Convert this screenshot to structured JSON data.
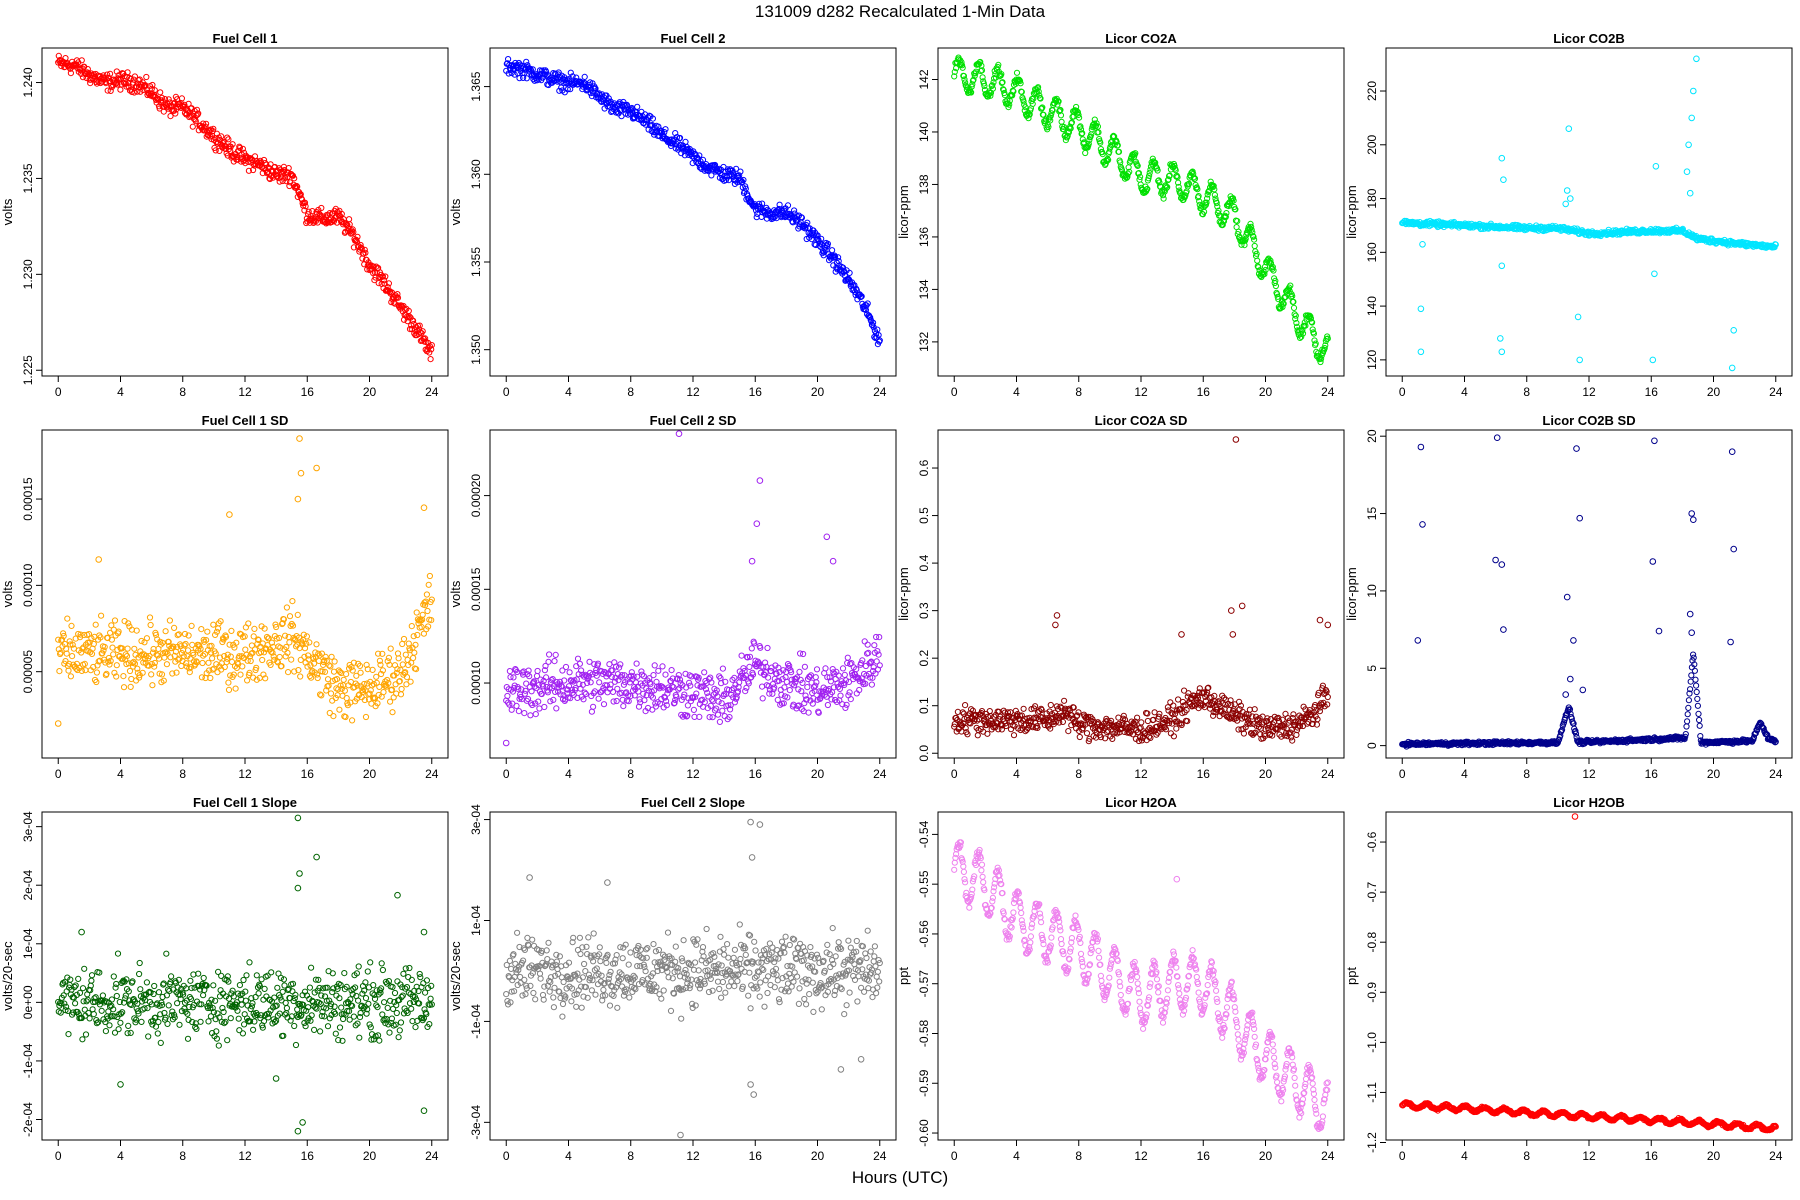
{
  "page": {
    "title": "131009    d282    Recalculated 1-Min Data",
    "xlabel": "Hours (UTC)"
  },
  "chart_data": [
    {
      "type": "scatter",
      "title": "Fuel Cell 1",
      "ylabel": "volts",
      "color": "#ff0000",
      "xlim": [
        0,
        24
      ],
      "xticks": [
        0,
        4,
        8,
        12,
        16,
        20,
        24
      ],
      "ylim": [
        1.2247,
        1.2418
      ],
      "yticks": [
        1.225,
        1.23,
        1.235,
        1.24
      ],
      "yticklabels": [
        "1.225",
        "1.230",
        "1.235",
        "1.240"
      ],
      "points": [
        [
          0,
          1.241
        ],
        [
          1,
          1.2409
        ],
        [
          2,
          1.2404
        ],
        [
          3,
          1.24
        ],
        [
          4,
          1.2401
        ],
        [
          5,
          1.24
        ],
        [
          6,
          1.2395
        ],
        [
          7,
          1.2387
        ],
        [
          8,
          1.2387
        ],
        [
          9,
          1.238
        ],
        [
          10,
          1.2372
        ],
        [
          11,
          1.2365
        ],
        [
          12,
          1.236
        ],
        [
          13,
          1.2357
        ],
        [
          14,
          1.2352
        ],
        [
          15,
          1.2352
        ],
        [
          16,
          1.2331
        ],
        [
          17,
          1.2329
        ],
        [
          18,
          1.233
        ],
        [
          19,
          1.232
        ],
        [
          20,
          1.2305
        ],
        [
          21,
          1.2295
        ],
        [
          22,
          1.2283
        ],
        [
          23,
          1.2272
        ],
        [
          24,
          1.2258
        ]
      ],
      "noise": 0.0004
    },
    {
      "type": "scatter",
      "title": "Fuel Cell 2",
      "ylabel": "volts",
      "color": "#0000ff",
      "xlim": [
        0,
        24
      ],
      "xticks": [
        0,
        4,
        8,
        12,
        16,
        20,
        24
      ],
      "ylim": [
        1.3485,
        1.3672
      ],
      "yticks": [
        1.35,
        1.355,
        1.36,
        1.365
      ],
      "yticklabels": [
        "1.350",
        "1.355",
        "1.360",
        "1.365"
      ],
      "points": [
        [
          0,
          1.3662
        ],
        [
          1,
          1.366
        ],
        [
          2,
          1.3657
        ],
        [
          3,
          1.3654
        ],
        [
          4,
          1.3652
        ],
        [
          5,
          1.3652
        ],
        [
          6,
          1.3644
        ],
        [
          7,
          1.3637
        ],
        [
          8,
          1.3636
        ],
        [
          9,
          1.363
        ],
        [
          10,
          1.3622
        ],
        [
          11,
          1.3617
        ],
        [
          12,
          1.361
        ],
        [
          13,
          1.3604
        ],
        [
          14,
          1.36
        ],
        [
          15,
          1.3598
        ],
        [
          16,
          1.358
        ],
        [
          17,
          1.3578
        ],
        [
          18,
          1.3578
        ],
        [
          19,
          1.3572
        ],
        [
          20,
          1.3562
        ],
        [
          21,
          1.3552
        ],
        [
          22,
          1.354
        ],
        [
          23,
          1.3525
        ],
        [
          24,
          1.3505
        ]
      ],
      "noise": 0.0004
    },
    {
      "type": "scatter",
      "title": "Licor CO2A",
      "ylabel": "licor-ppm",
      "color": "#00e000",
      "xlim": [
        0,
        24
      ],
      "xticks": [
        0,
        4,
        8,
        12,
        16,
        20,
        24
      ],
      "ylim": [
        130.7,
        143.2
      ],
      "yticks": [
        132,
        134,
        136,
        138,
        140,
        142
      ],
      "yticklabels": [
        "132",
        "134",
        "136",
        "138",
        "140",
        "142"
      ],
      "points": [
        [
          0,
          142.2
        ],
        [
          2,
          142.0
        ],
        [
          4,
          141.5
        ],
        [
          6,
          140.8
        ],
        [
          8,
          140.2
        ],
        [
          10,
          139.3
        ],
        [
          12,
          138.3
        ],
        [
          14,
          138.2
        ],
        [
          16,
          137.6
        ],
        [
          18,
          136.8
        ],
        [
          20,
          134.8
        ],
        [
          22,
          133.0
        ],
        [
          24,
          131.6
        ]
      ],
      "wave": 0.6,
      "noise": 0.15
    },
    {
      "type": "scatter",
      "title": "Licor CO2B",
      "ylabel": "licor-ppm",
      "color": "#00e5ff",
      "xlim": [
        0,
        24
      ],
      "xticks": [
        0,
        4,
        8,
        12,
        16,
        20,
        24
      ],
      "ylim": [
        114,
        236
      ],
      "yticks": [
        120,
        140,
        160,
        180,
        200,
        220
      ],
      "yticklabels": [
        "120",
        "140",
        "160",
        "180",
        "200",
        "220"
      ],
      "points": [
        [
          0,
          171
        ],
        [
          4,
          170
        ],
        [
          8,
          169
        ],
        [
          10,
          169
        ],
        [
          12,
          167
        ],
        [
          16,
          168
        ],
        [
          18,
          168
        ],
        [
          19,
          165
        ],
        [
          22,
          163
        ],
        [
          24,
          162
        ]
      ],
      "noise": 0.8,
      "extra": [
        [
          1.2,
          123
        ],
        [
          1.2,
          139
        ],
        [
          1.3,
          163
        ],
        [
          6.4,
          195
        ],
        [
          6.5,
          187
        ],
        [
          6.4,
          123
        ],
        [
          6.3,
          128
        ],
        [
          6.4,
          155
        ],
        [
          11.4,
          120
        ],
        [
          11.3,
          136
        ],
        [
          10.7,
          206
        ],
        [
          16.1,
          120
        ],
        [
          16.2,
          152
        ],
        [
          16.3,
          192
        ],
        [
          21.2,
          117
        ],
        [
          21.3,
          131
        ],
        [
          18.4,
          200
        ],
        [
          18.7,
          220
        ],
        [
          18.9,
          232
        ],
        [
          18.6,
          210
        ],
        [
          18.3,
          190
        ],
        [
          18.5,
          182
        ],
        [
          10.6,
          183
        ],
        [
          10.8,
          180
        ],
        [
          10.5,
          178
        ]
      ]
    },
    {
      "type": "scatter",
      "title": "Fuel Cell 1 SD",
      "ylabel": "volts",
      "color": "#ffa500",
      "xlim": [
        0,
        24
      ],
      "xticks": [
        0,
        4,
        8,
        12,
        16,
        20,
        24
      ],
      "ylim": [
        0.0,
        0.00019
      ],
      "yticks": [
        5e-05,
        0.0001,
        0.00015
      ],
      "yticklabels": [
        "0.00005",
        "0.00010",
        "0.00015"
      ],
      "points": [
        [
          0,
          6e-05
        ],
        [
          4,
          6e-05
        ],
        [
          8,
          6e-05
        ],
        [
          12,
          6e-05
        ],
        [
          15,
          7e-05
        ],
        [
          16,
          6e-05
        ],
        [
          18,
          4e-05
        ],
        [
          20,
          4e-05
        ],
        [
          22,
          5e-05
        ],
        [
          24,
          9e-05
        ]
      ],
      "noise": 1.5e-05,
      "extra": [
        [
          15.5,
          0.000185
        ],
        [
          15.4,
          0.00015
        ],
        [
          16.6,
          0.000168
        ],
        [
          15.6,
          0.000165
        ],
        [
          11,
          0.000141
        ],
        [
          23.5,
          0.000145
        ],
        [
          2.6,
          0.000115
        ],
        [
          0,
          2e-05
        ]
      ]
    },
    {
      "type": "scatter",
      "title": "Fuel Cell 2 SD",
      "ylabel": "volts",
      "color": "#a020f0",
      "xlim": [
        0,
        24
      ],
      "xticks": [
        0,
        4,
        8,
        12,
        16,
        20,
        24
      ],
      "ylim": [
        6e-05,
        0.000235
      ],
      "yticks": [
        0.0001,
        0.00015,
        0.0002
      ],
      "yticklabels": [
        "0.00010",
        "0.00015",
        "0.00020"
      ],
      "points": [
        [
          0,
          9.5e-05
        ],
        [
          4,
          0.0001
        ],
        [
          8,
          0.0001
        ],
        [
          12,
          9.5e-05
        ],
        [
          14,
          9e-05
        ],
        [
          16,
          0.00011
        ],
        [
          18,
          0.0001
        ],
        [
          20,
          9.5e-05
        ],
        [
          22,
          0.0001
        ],
        [
          24,
          0.000115
        ]
      ],
      "noise": 1.2e-05,
      "extra": [
        [
          11.1,
          0.000233
        ],
        [
          16.3,
          0.000208
        ],
        [
          16.1,
          0.000185
        ],
        [
          20.6,
          0.000178
        ],
        [
          15.8,
          0.000165
        ],
        [
          21,
          0.000165
        ],
        [
          0,
          6.8e-05
        ]
      ]
    },
    {
      "type": "scatter",
      "title": "Licor CO2A SD",
      "ylabel": "licor-ppm",
      "color": "#8b0000",
      "xlim": [
        0,
        24
      ],
      "xticks": [
        0,
        4,
        8,
        12,
        16,
        20,
        24
      ],
      "ylim": [
        -0.01,
        0.68
      ],
      "yticks": [
        0.0,
        0.1,
        0.2,
        0.3,
        0.4,
        0.5,
        0.6
      ],
      "yticklabels": [
        "0.0",
        "0.1",
        "0.2",
        "0.3",
        "0.4",
        "0.5",
        "0.6"
      ],
      "points": [
        [
          0,
          0.07
        ],
        [
          4,
          0.07
        ],
        [
          6,
          0.07
        ],
        [
          7,
          0.09
        ],
        [
          8,
          0.06
        ],
        [
          12,
          0.05
        ],
        [
          14,
          0.07
        ],
        [
          15,
          0.1
        ],
        [
          16,
          0.12
        ],
        [
          18,
          0.08
        ],
        [
          20,
          0.05
        ],
        [
          22,
          0.06
        ],
        [
          23,
          0.08
        ],
        [
          24,
          0.12
        ]
      ],
      "noise": 0.025,
      "extra": [
        [
          18.1,
          0.66
        ],
        [
          6.6,
          0.29
        ],
        [
          6.5,
          0.27
        ],
        [
          17.8,
          0.3
        ],
        [
          18.5,
          0.31
        ],
        [
          14.6,
          0.25
        ],
        [
          23.5,
          0.28
        ],
        [
          24,
          0.27
        ],
        [
          17.9,
          0.25
        ]
      ]
    },
    {
      "type": "scatter",
      "title": "Licor CO2B SD",
      "ylabel": "licor-ppm",
      "color": "#00008b",
      "xlim": [
        0,
        24
      ],
      "xticks": [
        0,
        4,
        8,
        12,
        16,
        20,
        24
      ],
      "ylim": [
        -0.8,
        20.4
      ],
      "yticks": [
        0,
        5,
        10,
        15,
        20
      ],
      "yticklabels": [
        "0",
        "5",
        "10",
        "15",
        "20"
      ],
      "points": [
        [
          0,
          0.1
        ],
        [
          10,
          0.2
        ],
        [
          10.7,
          2.5
        ],
        [
          11.3,
          0.2
        ],
        [
          18.2,
          0.5
        ],
        [
          18.7,
          6
        ],
        [
          19.2,
          0.2
        ],
        [
          22.5,
          0.3
        ],
        [
          23,
          1.5
        ],
        [
          23.5,
          0.5
        ],
        [
          24,
          0.3
        ]
      ],
      "noise": 0.1,
      "extra": [
        [
          1.2,
          19.3
        ],
        [
          1.3,
          14.3
        ],
        [
          1.0,
          6.8
        ],
        [
          6.1,
          19.9
        ],
        [
          6.0,
          12
        ],
        [
          6.4,
          11.7
        ],
        [
          6.5,
          7.5
        ],
        [
          11.2,
          19.2
        ],
        [
          11.4,
          14.7
        ],
        [
          10.6,
          9.6
        ],
        [
          11.0,
          6.8
        ],
        [
          16.2,
          19.7
        ],
        [
          16.1,
          11.9
        ],
        [
          16.5,
          7.4
        ],
        [
          21.2,
          19
        ],
        [
          21.3,
          12.7
        ],
        [
          21.1,
          6.7
        ],
        [
          18.6,
          15
        ],
        [
          18.7,
          14.6
        ],
        [
          18.5,
          8.5
        ],
        [
          18.6,
          7.3
        ],
        [
          10.8,
          4.3
        ],
        [
          10.5,
          3.3
        ],
        [
          11.6,
          3.6
        ]
      ]
    },
    {
      "type": "scatter",
      "title": "Fuel Cell 1 Slope",
      "ylabel": "volts/20-sec",
      "color": "#006400",
      "xlim": [
        0,
        24
      ],
      "xticks": [
        0,
        4,
        8,
        12,
        16,
        20,
        24
      ],
      "ylim": [
        -0.000235,
        0.000325
      ],
      "yticks": [
        -0.0002,
        -0.0001,
        0.0,
        0.0001,
        0.0002,
        0.0003
      ],
      "yticklabels": [
        "-2e-04",
        "-1e-04",
        "0e+00",
        "1e-04",
        "2e-04",
        "3e-04"
      ],
      "points": [
        [
          0,
          0.0
        ],
        [
          24,
          0.0
        ]
      ],
      "noise": 5e-05,
      "extra": [
        [
          15.4,
          0.000315
        ],
        [
          16.6,
          0.000248
        ],
        [
          15.5,
          0.00022
        ],
        [
          15.4,
          0.000195
        ],
        [
          21.8,
          0.000183
        ],
        [
          15.4,
          -0.00022
        ],
        [
          15.7,
          -0.000205
        ],
        [
          23.5,
          -0.000185
        ],
        [
          4,
          -0.00014
        ],
        [
          14,
          -0.00013
        ],
        [
          1.5,
          0.00012
        ],
        [
          23.5,
          0.00012
        ]
      ]
    },
    {
      "type": "scatter",
      "title": "Fuel Cell 2 Slope",
      "ylabel": "volts/20-sec",
      "color": "#808080",
      "xlim": [
        0,
        24
      ],
      "xticks": [
        0,
        4,
        8,
        12,
        16,
        20,
        24
      ],
      "ylim": [
        -0.000335,
        0.000315
      ],
      "yticks": [
        -0.0003,
        -0.0001,
        0.0001,
        0.0003
      ],
      "yticklabels": [
        "-3e-04",
        "-1e-04",
        "1e-04",
        "3e-04"
      ],
      "points": [
        [
          0,
          0.0
        ],
        [
          24,
          0.0
        ]
      ],
      "noise": 6e-05,
      "extra": [
        [
          11.2,
          -0.000325
        ],
        [
          15.7,
          0.000295
        ],
        [
          16.3,
          0.00029
        ],
        [
          15.8,
          0.000225
        ],
        [
          15.7,
          -0.000225
        ],
        [
          15.9,
          -0.000245
        ],
        [
          21.5,
          -0.000195
        ],
        [
          22.8,
          -0.000175
        ],
        [
          1.5,
          0.000185
        ],
        [
          6.5,
          0.000175
        ]
      ]
    },
    {
      "type": "scatter",
      "title": "Licor H2OA",
      "ylabel": "ppt",
      "color": "#ee82ee",
      "xlim": [
        0,
        24
      ],
      "xticks": [
        0,
        4,
        8,
        12,
        16,
        20,
        24
      ],
      "ylim": [
        -0.6014,
        -0.5355
      ],
      "yticks": [
        -0.6,
        -0.59,
        -0.58,
        -0.57,
        -0.56,
        -0.55,
        -0.54
      ],
      "yticklabels": [
        "-0.60",
        "-0.59",
        "-0.58",
        "-0.57",
        "-0.56",
        "-0.55",
        "-0.54"
      ],
      "points": [
        [
          0,
          -0.547
        ],
        [
          2,
          -0.55
        ],
        [
          4,
          -0.557
        ],
        [
          6,
          -0.56
        ],
        [
          8,
          -0.563
        ],
        [
          10,
          -0.568
        ],
        [
          12,
          -0.573
        ],
        [
          14,
          -0.57
        ],
        [
          16,
          -0.57
        ],
        [
          18,
          -0.577
        ],
        [
          20,
          -0.585
        ],
        [
          22,
          -0.59
        ],
        [
          24,
          -0.595
        ]
      ],
      "wave": 0.0055,
      "noise": 0.001,
      "extra": [
        [
          14.3,
          -0.549
        ]
      ]
    },
    {
      "type": "scatter",
      "title": "Licor H2OB",
      "ylabel": "ppt",
      "color": "#ff0000",
      "xlim": [
        0,
        24
      ],
      "xticks": [
        0,
        4,
        8,
        12,
        16,
        20,
        24
      ],
      "ylim": [
        -1.195,
        -0.54
      ],
      "yticks": [
        -1.2,
        -1.1,
        -1.0,
        -0.9,
        -0.8,
        -0.7,
        -0.6
      ],
      "yticklabels": [
        "-1.2",
        "-1.1",
        "-1.0",
        "-0.9",
        "-0.8",
        "-0.7",
        "-0.6"
      ],
      "points": [
        [
          0,
          -1.125
        ],
        [
          4,
          -1.132
        ],
        [
          8,
          -1.14
        ],
        [
          12,
          -1.148
        ],
        [
          16,
          -1.155
        ],
        [
          20,
          -1.163
        ],
        [
          24,
          -1.172
        ]
      ],
      "wave": 0.005,
      "noise": 0.002,
      "extra": [
        [
          11.1,
          -0.549
        ]
      ]
    }
  ]
}
